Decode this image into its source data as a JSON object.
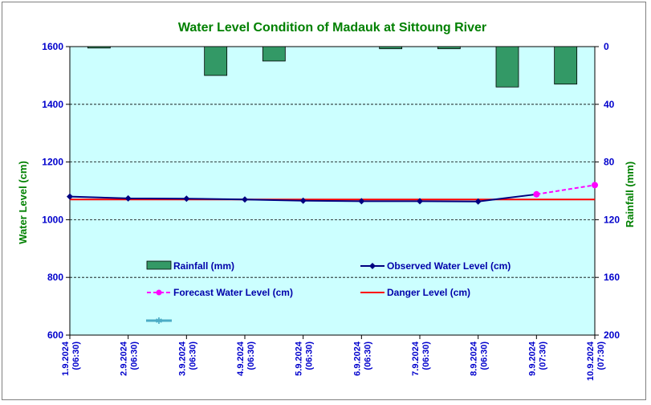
{
  "chart_data": {
    "type": "line",
    "title": "Water Level Condition of Madauk at Sittoung River",
    "ylabel_left": "Water Level (cm)",
    "ylabel_right": "Rainfall (mm)",
    "ylim_left": [
      600,
      1600
    ],
    "yticks_left": [
      600,
      800,
      1000,
      1200,
      1400,
      1600
    ],
    "ylim_right": [
      0,
      200
    ],
    "yticks_right": [
      0,
      40,
      80,
      120,
      160,
      200
    ],
    "right_axis_inverted": true,
    "grid": true,
    "categories": [
      {
        "date": "1.9.2024",
        "time": "(06:30)"
      },
      {
        "date": "2.9.2024",
        "time": "(06:30)"
      },
      {
        "date": "3.9.2024",
        "time": "(06:30)"
      },
      {
        "date": "4.9.2024",
        "time": "(06:30)"
      },
      {
        "date": "5.9.2024",
        "time": "(06:30)"
      },
      {
        "date": "6.9.2024",
        "time": "(06:30)"
      },
      {
        "date": "7.9.2024",
        "time": "(06:30)"
      },
      {
        "date": "8.9.2024",
        "time": "(06:30)"
      },
      {
        "date": "9.9.2024",
        "time": "(07:30)"
      },
      {
        "date": "10.9.2024",
        "time": "(07:30)"
      }
    ],
    "rainfall": {
      "name": "Rainfall (mm)",
      "color": "#339966",
      "values": [
        1,
        0,
        20,
        10,
        0,
        1.5,
        1.5,
        28,
        26
      ]
    },
    "observed": {
      "name": "Observed Water Level (cm)",
      "color": "#000080",
      "values": [
        1080,
        1074,
        1073,
        1070,
        1066,
        1064,
        1064,
        1063,
        1088,
        null
      ]
    },
    "forecast": {
      "name": "Forecast Water Level (cm)",
      "color": "#ff00ff",
      "values": [
        null,
        null,
        null,
        null,
        null,
        null,
        null,
        null,
        1088,
        1120
      ]
    },
    "danger": {
      "name": "Danger Level (cm)",
      "color": "#ff0000",
      "value": 1070
    },
    "legend_placement": "inside-bottom-left",
    "extra_legend_marker_color": "#4bacc6",
    "colors": {
      "plot_background": "#ccffff",
      "title": "#008000",
      "tick_text": "#0000cc"
    }
  }
}
